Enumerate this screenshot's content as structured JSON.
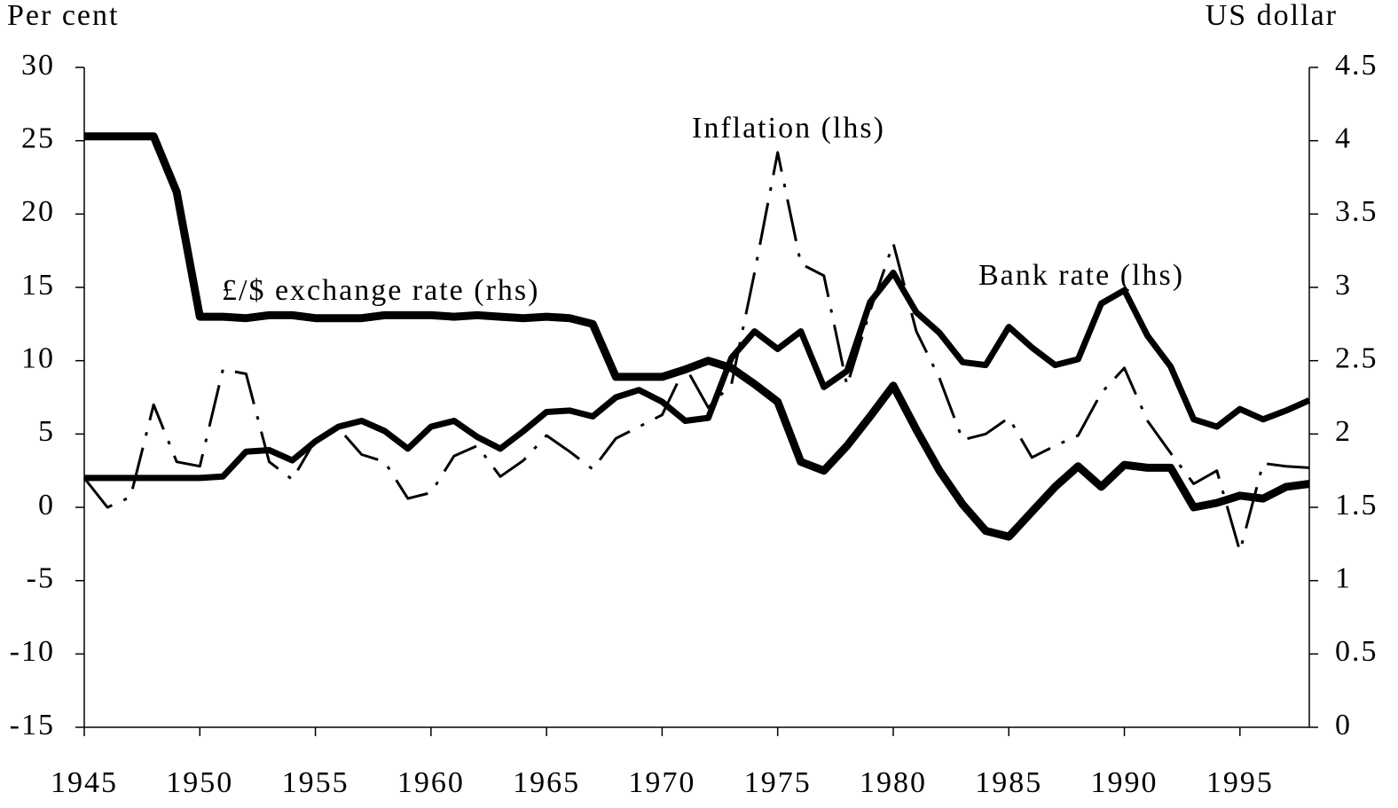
{
  "chart_data": {
    "type": "line",
    "y_label": "Per cent",
    "y2_label": "US dollar",
    "xlim": [
      1945,
      1998
    ],
    "xticks": [
      1945,
      1950,
      1955,
      1960,
      1965,
      1970,
      1975,
      1980,
      1985,
      1990,
      1995
    ],
    "ylim": [
      -15,
      30
    ],
    "yticks": [
      -15,
      -10,
      -5,
      0,
      5,
      10,
      15,
      20,
      25,
      30
    ],
    "y2lim": [
      0,
      4.5
    ],
    "y2ticks": [
      0,
      0.5,
      1,
      1.5,
      2,
      2.5,
      3,
      3.5,
      4,
      4.5
    ],
    "x": [
      1945,
      1946,
      1947,
      1948,
      1949,
      1950,
      1951,
      1952,
      1953,
      1954,
      1955,
      1956,
      1957,
      1958,
      1959,
      1960,
      1961,
      1962,
      1963,
      1964,
      1965,
      1966,
      1967,
      1968,
      1969,
      1970,
      1971,
      1972,
      1973,
      1974,
      1975,
      1976,
      1977,
      1978,
      1979,
      1980,
      1981,
      1982,
      1983,
      1984,
      1985,
      1986,
      1987,
      1988,
      1989,
      1990,
      1991,
      1992,
      1993,
      1994,
      1995,
      1996,
      1997,
      1998
    ],
    "series": [
      {
        "name": "£/$ exchange rate (rhs)",
        "color": "#000000",
        "style": "solid",
        "axis": "y2",
        "values": [
          4.03,
          4.03,
          4.03,
          4.03,
          3.65,
          2.8,
          2.8,
          2.79,
          2.81,
          2.81,
          2.79,
          2.79,
          2.79,
          2.81,
          2.81,
          2.81,
          2.8,
          2.81,
          2.8,
          2.79,
          2.8,
          2.79,
          2.75,
          2.39,
          2.39,
          2.39,
          2.44,
          2.5,
          2.45,
          2.34,
          2.22,
          1.81,
          1.75,
          1.92,
          2.12,
          2.33,
          2.03,
          1.75,
          1.52,
          1.34,
          1.3,
          1.47,
          1.64,
          1.78,
          1.64,
          1.79,
          1.77,
          1.77,
          1.5,
          1.53,
          1.58,
          1.56,
          1.64,
          1.66
        ]
      },
      {
        "name": "Bank rate (lhs)",
        "color": "#000000",
        "style": "solid",
        "values": [
          2,
          2,
          2,
          2,
          2,
          2,
          2.1,
          3.8,
          3.9,
          3.2,
          4.5,
          5.5,
          5.9,
          5.2,
          4.0,
          5.5,
          5.9,
          4.8,
          4.0,
          5.2,
          6.5,
          6.6,
          6.2,
          7.5,
          8.0,
          7.2,
          5.9,
          6.1,
          10.2,
          12.0,
          10.8,
          12.0,
          8.2,
          9.3,
          14.0,
          16.0,
          13.3,
          11.9,
          9.9,
          9.7,
          12.3,
          10.9,
          9.7,
          10.1,
          13.9,
          14.8,
          11.7,
          9.6,
          6.0,
          5.5,
          6.7,
          6.0,
          6.6,
          7.3
        ]
      },
      {
        "name": "Inflation (lhs)",
        "color": "#000000",
        "style": "dashdot",
        "values": [
          2.0,
          0.0,
          0.7,
          7.0,
          3.1,
          2.8,
          9.4,
          9.1,
          3.1,
          1.9,
          4.6,
          5.4,
          3.6,
          3.1,
          0.6,
          1.0,
          3.5,
          4.2,
          2.1,
          3.2,
          4.9,
          3.8,
          2.6,
          4.7,
          5.5,
          6.3,
          9.6,
          6.8,
          8.4,
          16.0,
          24.2,
          16.6,
          15.8,
          8.3,
          13.4,
          18.0,
          12.0,
          8.8,
          4.6,
          5.0,
          6.1,
          3.4,
          4.2,
          4.9,
          7.8,
          9.5,
          5.9,
          3.7,
          1.6,
          2.5,
          -3.0,
          3.0,
          2.8,
          2.7
        ]
      }
    ]
  }
}
